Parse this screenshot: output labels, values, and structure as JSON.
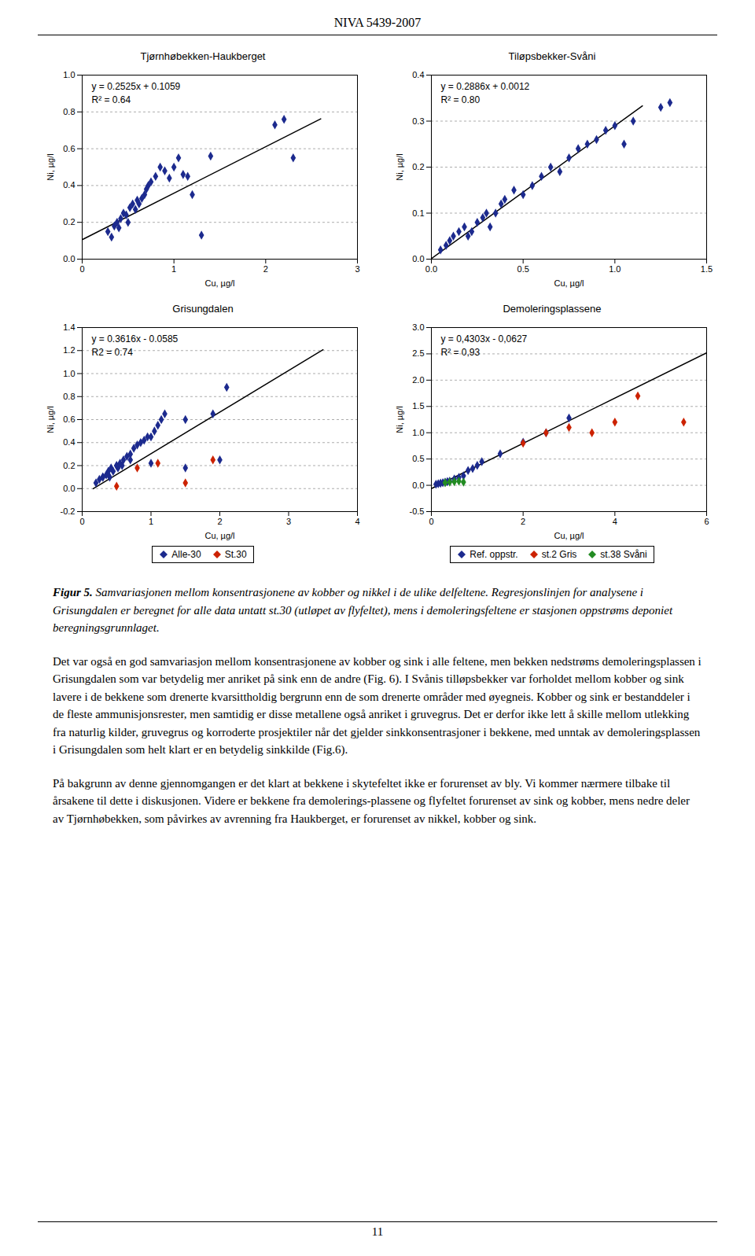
{
  "title": "NIVA 5439-2007",
  "caption_label": "Figur 5.",
  "caption": "Samvariasjonen mellom konsentrasjonene av kobber og nikkel i de ulike delfeltene. Regresjonslinjen for analysene i Grisungdalen er beregnet for alle data untatt st.30 (utløpet av flyfeltet), mens i demoleringsfeltene er stasjonen oppstrøms deponiet beregningsgrunnlaget.",
  "paragraphs": [
    "Det var også en god samvariasjon mellom konsentrasjonene av kobber og sink i alle feltene, men bekken nedstrøms demoleringsplassen i Grisungdalen som var betydelig mer anriket på sink enn de andre (Fig. 6). I Svånis tilløpsbekker var forholdet mellom kobber og sink lavere i de bekkene som drenerte kvarsittholdig bergrunn enn de som drenerte områder med øyegneis. Kobber og sink er bestanddeler i de fleste ammunisjonsrester, men samtidig er disse metallene også anriket i gruvegrus. Det er derfor ikke lett å skille mellom utlekking fra naturlig kilder, gruvegrus og korroderte prosjektiler når det gjelder sinkkonsentrasjoner i bekkene, med unntak av demoleringsplassen i Grisungdalen som helt klart er en betydelig sinkkilde (Fig.6).",
    "På bakgrunn av denne gjennomgangen er det klart at bekkene i skytefeltet ikke er forurenset av bly. Vi kommer nærmere tilbake til årsakene til dette i diskusjonen. Videre er bekkene fra demolerings-plassene og flyfeltet forurenset av sink og kobber, mens nedre deler av Tjørnhøbekken, som påvirkes av avrenning fra Haukberget, er forurenset av nikkel, kobber og sink."
  ],
  "page_number": "11",
  "chart_data": [
    {
      "type": "scatter",
      "title": "Tjørnhøbekken-Haukberget",
      "xlabel": "Cu, µg/l",
      "ylabel": "Ni, µg/l",
      "xlim": [
        0,
        3
      ],
      "ylim": [
        0,
        1.0
      ],
      "xticks": [
        0,
        1,
        2,
        3
      ],
      "yticks": [
        {
          "value": 0,
          "label": "0.0"
        },
        0.2,
        0.4,
        0.6,
        0.8,
        {
          "value": 1.0,
          "label": "1.0"
        }
      ],
      "grid": "y",
      "annotations": [
        "y = 0.2525x + 0.1059",
        "R² = 0.64"
      ],
      "series": [
        {
          "color": "#1C2A8E",
          "marker": "diamond",
          "x": [
            0.28,
            0.32,
            0.35,
            0.38,
            0.4,
            0.42,
            0.45,
            0.48,
            0.5,
            0.52,
            0.55,
            0.58,
            0.6,
            0.62,
            0.65,
            0.68,
            0.7,
            0.72,
            0.75,
            0.8,
            0.85,
            0.9,
            0.95,
            1.0,
            1.05,
            1.1,
            1.15,
            1.2,
            1.3,
            1.4,
            2.1,
            2.2,
            2.3
          ],
          "y": [
            0.15,
            0.12,
            0.18,
            0.2,
            0.17,
            0.22,
            0.25,
            0.24,
            0.2,
            0.28,
            0.3,
            0.27,
            0.32,
            0.3,
            0.33,
            0.35,
            0.38,
            0.4,
            0.42,
            0.45,
            0.5,
            0.48,
            0.44,
            0.5,
            0.55,
            0.46,
            0.45,
            0.35,
            0.13,
            0.56,
            0.73,
            0.76,
            0.55
          ]
        },
        {
          "type": "line",
          "color": "#000000",
          "line_style": "solid",
          "x": [
            0.0,
            2.6
          ],
          "y": [
            0.1059,
            0.7624
          ]
        }
      ]
    },
    {
      "type": "scatter",
      "title": "Tiløpsbekker-Svåni",
      "xlabel": "Cu, µg/l",
      "ylabel": "Ni, µg/l",
      "xlim": [
        0,
        1.5
      ],
      "ylim": [
        0,
        0.4
      ],
      "xticks": [
        {
          "value": 0,
          "label": "0.0"
        },
        0.5,
        {
          "value": 1.0,
          "label": "1.0"
        },
        1.5
      ],
      "yticks": [
        {
          "value": 0,
          "label": "0.0"
        },
        0.1,
        0.2,
        0.3,
        0.4
      ],
      "grid": "y",
      "annotations": [
        "y = 0.2886x + 0.0012",
        "R² = 0.80"
      ],
      "series": [
        {
          "color": "#1C2A8E",
          "marker": "diamond",
          "x": [
            0.05,
            0.08,
            0.1,
            0.12,
            0.15,
            0.18,
            0.2,
            0.22,
            0.25,
            0.28,
            0.3,
            0.32,
            0.35,
            0.38,
            0.4,
            0.45,
            0.5,
            0.55,
            0.6,
            0.65,
            0.7,
            0.75,
            0.8,
            0.85,
            0.9,
            0.95,
            1.0,
            1.05,
            1.1,
            1.25,
            1.3
          ],
          "y": [
            0.02,
            0.03,
            0.04,
            0.05,
            0.06,
            0.07,
            0.05,
            0.06,
            0.08,
            0.09,
            0.1,
            0.07,
            0.1,
            0.12,
            0.13,
            0.15,
            0.14,
            0.16,
            0.18,
            0.2,
            0.19,
            0.22,
            0.24,
            0.25,
            0.26,
            0.28,
            0.29,
            0.25,
            0.3,
            0.33,
            0.34
          ]
        },
        {
          "type": "line",
          "color": "#000000",
          "line_style": "solid",
          "x": [
            0.0,
            1.15
          ],
          "y": [
            0.0012,
            0.33309
          ]
        }
      ]
    },
    {
      "type": "scatter",
      "title": "Grisungdalen",
      "xlabel": "Cu, µg/l",
      "ylabel": "Ni, µg/l",
      "xlim": [
        0,
        4
      ],
      "ylim": [
        -0.2,
        1.4
      ],
      "xticks": [
        0,
        1,
        2,
        3,
        4
      ],
      "yticks": [
        -0.2,
        {
          "value": 0,
          "label": "0.0"
        },
        0.2,
        0.4,
        0.6,
        0.8,
        {
          "value": 1.0,
          "label": "1.0"
        },
        1.2,
        1.4
      ],
      "grid": "y",
      "legend": "bottom",
      "annotations": [
        "y = 0.3616x - 0.0585",
        "R2 = 0.74"
      ],
      "series": [
        {
          "name": "Alle-30",
          "color": "#1C2A8E",
          "marker": "diamond",
          "x": [
            0.2,
            0.25,
            0.3,
            0.35,
            0.38,
            0.4,
            0.42,
            0.45,
            0.5,
            0.52,
            0.55,
            0.58,
            0.6,
            0.65,
            0.7,
            0.75,
            0.8,
            0.85,
            0.9,
            0.95,
            1.0,
            1.05,
            1.1,
            1.15,
            1.2,
            1.5,
            1.9,
            2.1,
            0.3,
            0.5,
            0.7,
            1.0,
            1.5,
            2.0
          ],
          "y": [
            0.05,
            0.08,
            0.1,
            0.12,
            0.15,
            0.1,
            0.18,
            0.15,
            0.2,
            0.18,
            0.22,
            0.2,
            0.25,
            0.28,
            0.3,
            0.35,
            0.38,
            0.4,
            0.42,
            0.45,
            0.45,
            0.5,
            0.55,
            0.6,
            0.65,
            0.6,
            0.65,
            0.88,
            0.1,
            0.2,
            0.25,
            0.22,
            0.18,
            0.25
          ]
        },
        {
          "name": "St.30",
          "color": "#CC2200",
          "marker": "diamond",
          "x": [
            1.9,
            1.5,
            0.5,
            0.8,
            1.1
          ],
          "y": [
            0.25,
            0.05,
            0.02,
            0.18,
            0.22
          ]
        },
        {
          "type": "line",
          "color": "#000000",
          "line_style": "solid",
          "x": [
            0.16,
            3.5
          ],
          "y": [
            -0.000644,
            1.2071
          ]
        }
      ]
    },
    {
      "type": "scatter",
      "title": "Demoleringsplassene",
      "xlabel": "Cu, µg/l",
      "ylabel": "Ni, µg/l",
      "xlim": [
        0,
        6
      ],
      "ylim": [
        -0.5,
        3
      ],
      "xticks": [
        0,
        2,
        4,
        6
      ],
      "yticks": [
        -0.5,
        {
          "value": 0,
          "label": "0.0"
        },
        0.5,
        {
          "value": 1.0,
          "label": "1.0"
        },
        1.5,
        {
          "value": 2.0,
          "label": "2.0"
        },
        2.5,
        {
          "value": 3.0,
          "label": "3.0"
        }
      ],
      "grid": "y",
      "legend": "bottom",
      "annotations": [
        "y = 0,4303x - 0,0627",
        "R² = 0,93"
      ],
      "series": [
        {
          "name": "Ref. oppstr.",
          "color": "#1C2A8E",
          "marker": "diamond",
          "x": [
            0.1,
            0.15,
            0.2,
            0.25,
            0.3,
            0.35,
            0.4,
            0.5,
            0.6,
            0.7,
            0.8,
            0.9,
            1.0,
            1.1,
            1.5,
            2.0,
            2.5,
            3.0
          ],
          "y": [
            0.02,
            0.03,
            0.04,
            0.05,
            0.06,
            0.07,
            0.08,
            0.12,
            0.15,
            0.18,
            0.28,
            0.32,
            0.38,
            0.45,
            0.6,
            0.82,
            1.0,
            1.28
          ]
        },
        {
          "name": "st.2 Gris",
          "color": "#CC2200",
          "marker": "diamond",
          "x": [
            2.0,
            2.5,
            3.0,
            3.5,
            4.0,
            4.5,
            5.5
          ],
          "y": [
            0.8,
            1.0,
            1.1,
            1.0,
            1.2,
            1.7,
            1.2
          ]
        },
        {
          "name": "st.38 Svåni",
          "color": "#228B22",
          "marker": "diamond",
          "x": [
            0.3,
            0.4,
            0.5,
            0.6,
            0.7
          ],
          "y": [
            0.05,
            0.06,
            0.07,
            0.08,
            0.06
          ]
        },
        {
          "type": "line",
          "color": "#000000",
          "line_style": "solid",
          "x": [
            0.0,
            6.0
          ],
          "y": [
            -0.0627,
            2.5191
          ]
        }
      ]
    }
  ]
}
